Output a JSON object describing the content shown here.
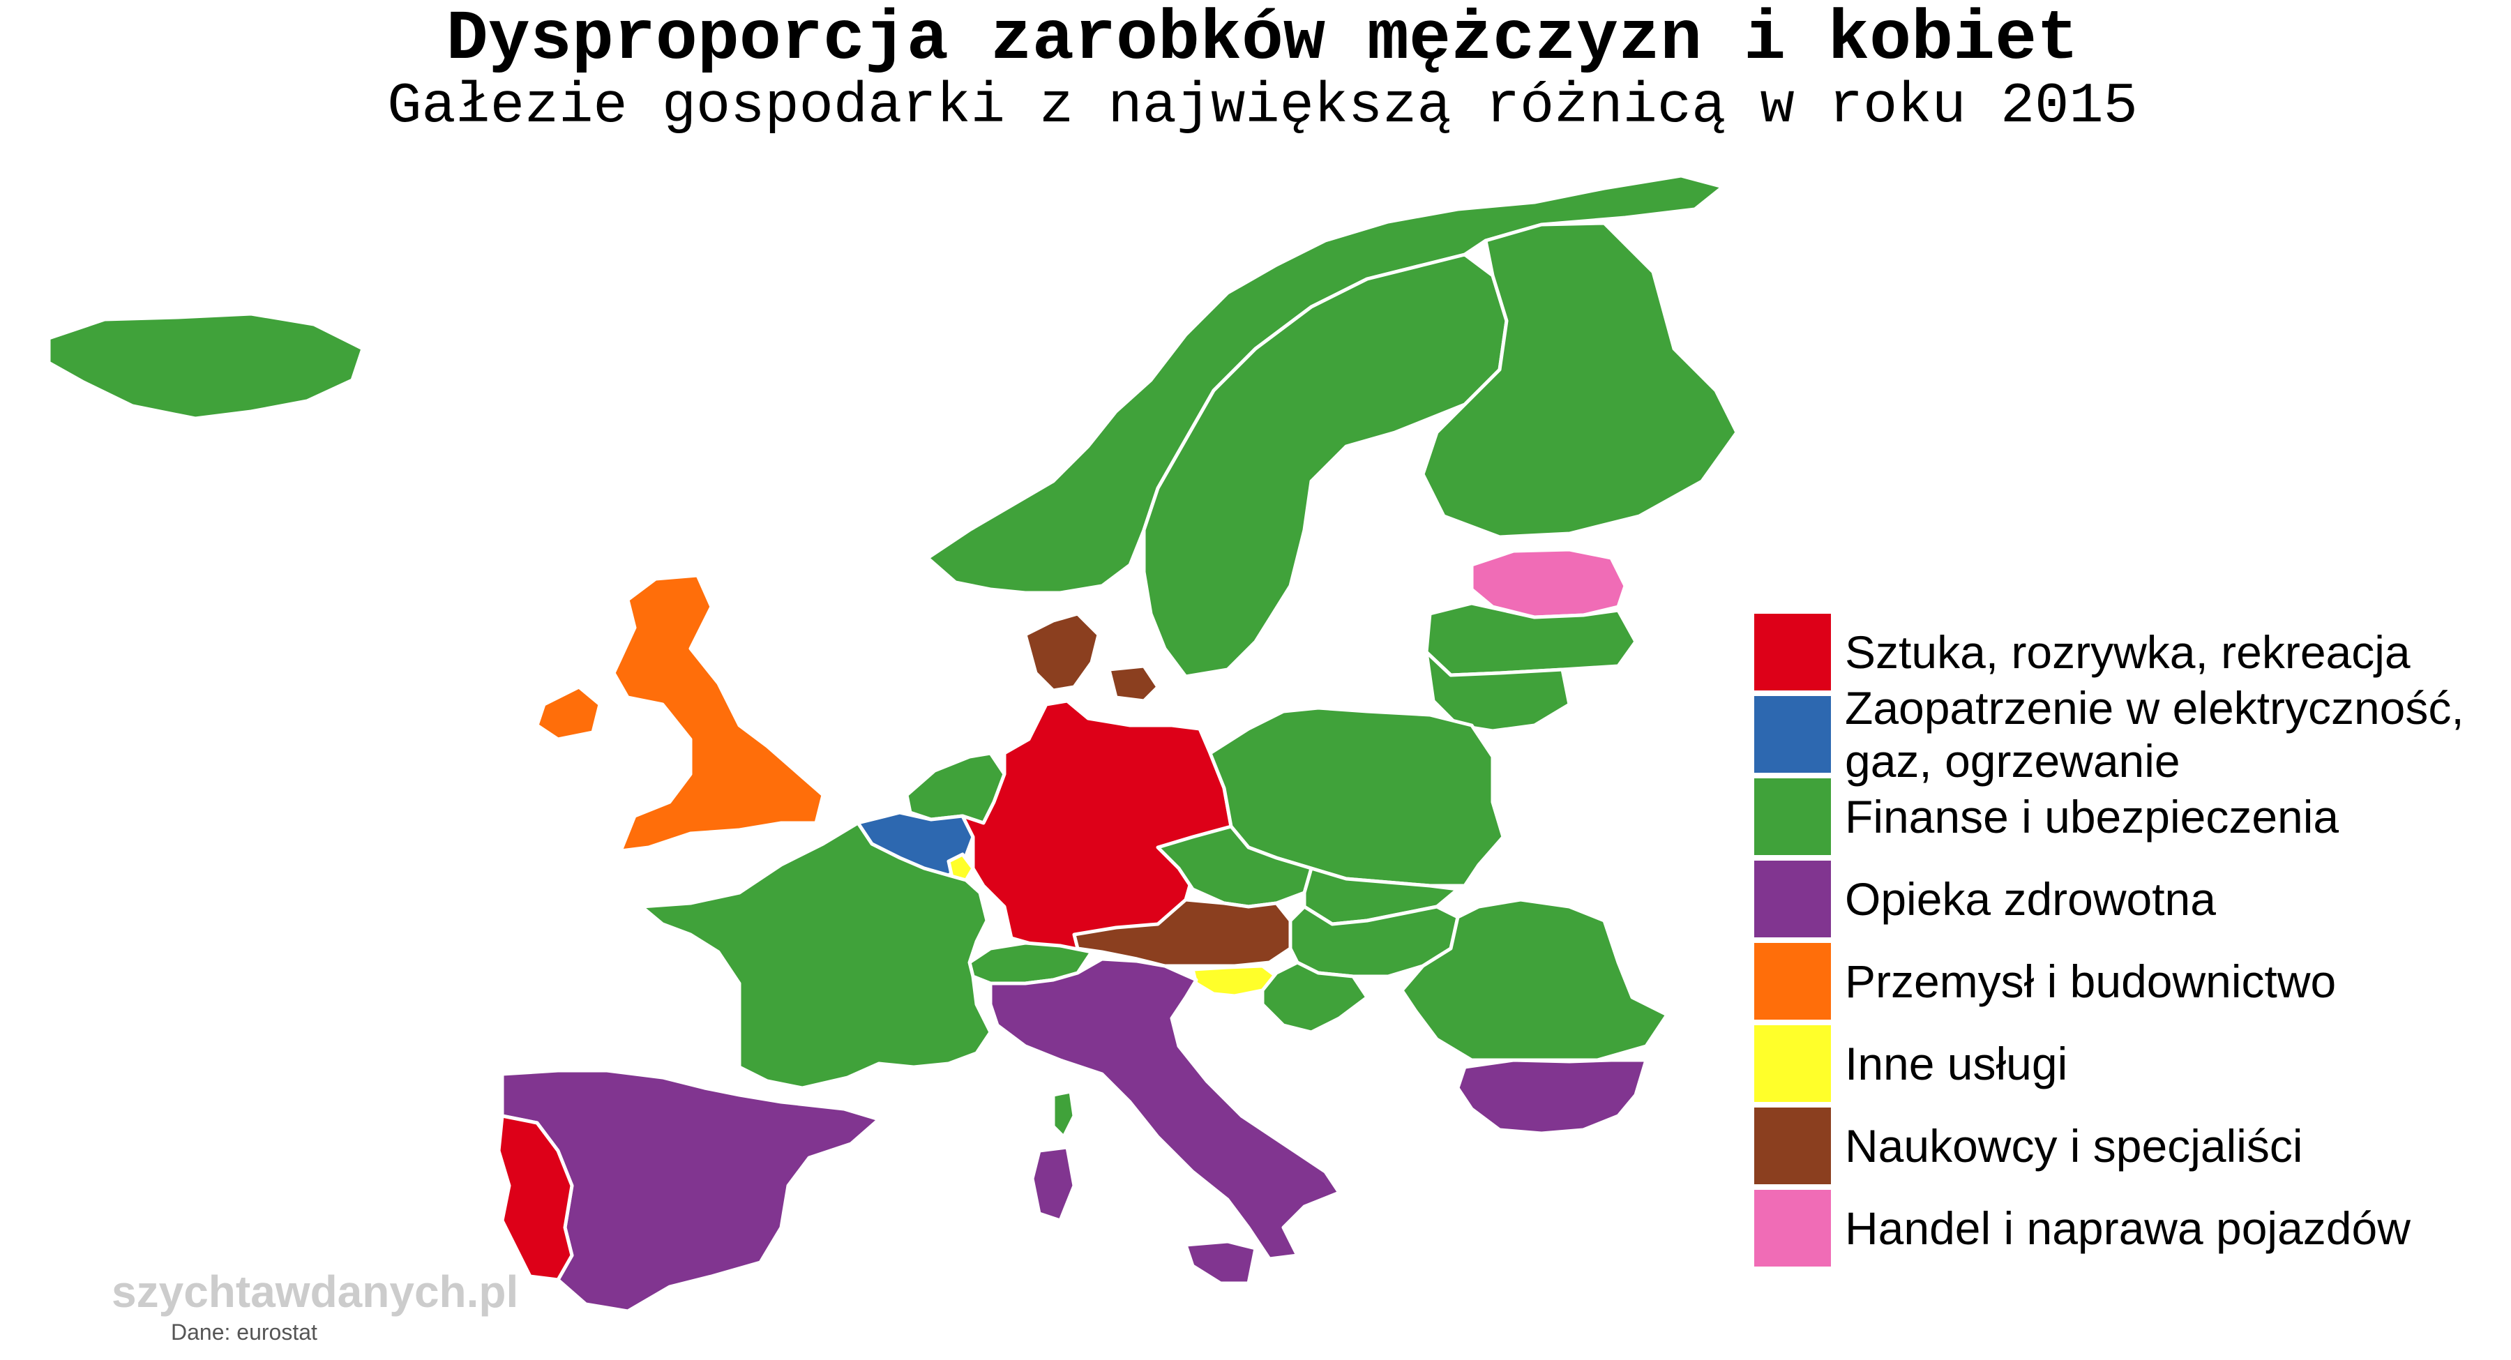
{
  "title": "Dysproporcja zarobków mężczyzn i kobiet",
  "subtitle": "Gałezie gospodarki z największą różnicą w roku 2015",
  "legend": [
    {
      "label": "Sztuka, rozrywka, rekreacja",
      "color": "#dd0018"
    },
    {
      "label": "Zaopatrzenie w elektryczność, gaz, ogrzewanie",
      "color": "#2d68b0"
    },
    {
      "label": "Finanse i ubezpieczenia",
      "color": "#40a23a"
    },
    {
      "label": "Opieka zdrowotna",
      "color": "#813590"
    },
    {
      "label": "Przemysł i budownictwo",
      "color": "#ff6e0a"
    },
    {
      "label": "Inne usługi",
      "color": "#ffff2a"
    },
    {
      "label": "Naukowcy i specjaliści",
      "color": "#8b3f1f"
    },
    {
      "label": "Handel i naprawa pojazdów",
      "color": "#f06cb6"
    }
  ],
  "country_category": {
    "iceland": 2,
    "norway": 2,
    "sweden": 2,
    "finland": 2,
    "estonia": 7,
    "latvia": 2,
    "lithuania": 2,
    "united-kingdom": 4,
    "denmark": 6,
    "netherlands": 2,
    "belgium": 1,
    "luxembourg": 5,
    "germany": 0,
    "poland": 2,
    "czech-republic": 2,
    "slovakia": 2,
    "austria": 6,
    "hungary": 2,
    "slovenia": 5,
    "switzerland": 2,
    "france": 2,
    "italy": 3,
    "spain": 3,
    "portugal": 0,
    "romania": 2,
    "bulgaria": 3,
    "croatia": 2,
    "corsica": 2,
    "sardinia": 3,
    "sicily": 3
  },
  "watermark": "szychtawdanych.pl",
  "source": "Dane: eurostat"
}
